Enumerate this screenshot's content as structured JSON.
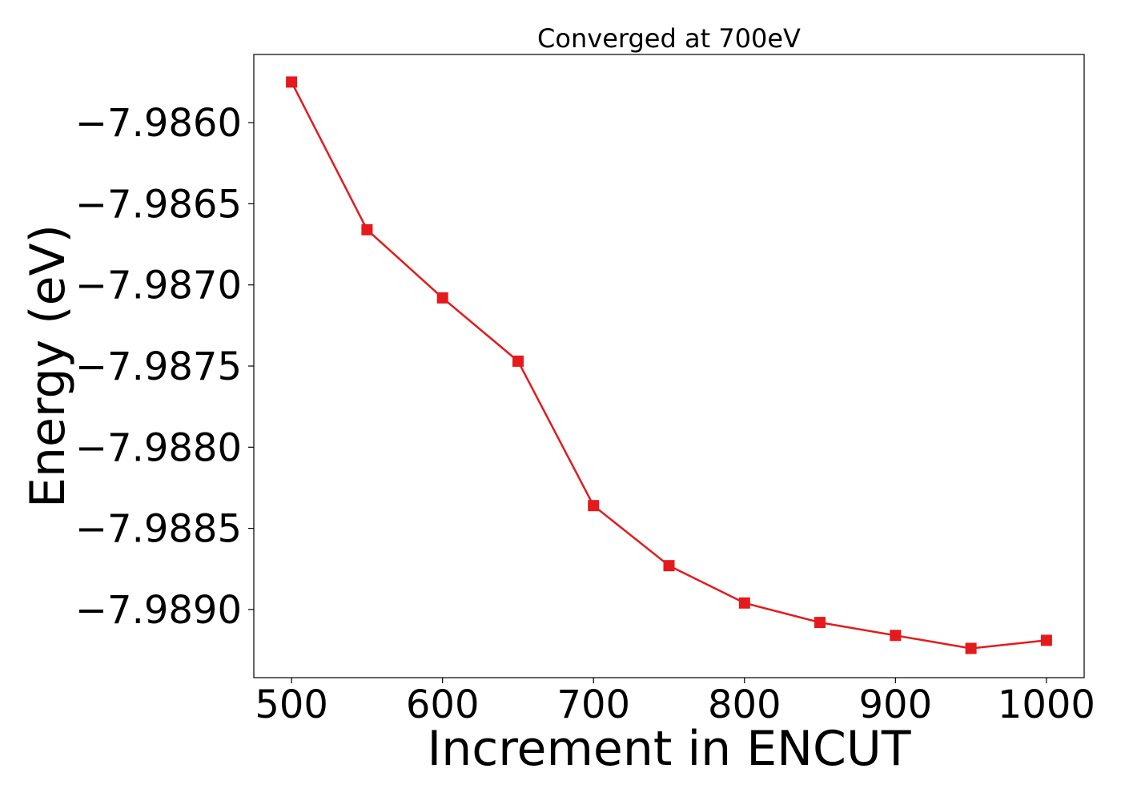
{
  "chart_data": {
    "type": "line",
    "title": "Converged at 700eV",
    "xlabel": "Increment in ENCUT",
    "ylabel": "Energy (eV)",
    "xlim": [
      475,
      1025
    ],
    "ylim": [
      -7.98942,
      -7.98558
    ],
    "x_ticks": [
      500,
      600,
      700,
      800,
      900,
      1000
    ],
    "x_tick_labels": [
      "500",
      "600",
      "700",
      "800",
      "900",
      "1000"
    ],
    "y_ticks": [
      -7.986,
      -7.9865,
      -7.987,
      -7.9875,
      -7.988,
      -7.9885,
      -7.989
    ],
    "y_tick_labels": [
      "−7.9860",
      "−7.9865",
      "−7.9870",
      "−7.9875",
      "−7.9880",
      "−7.9885",
      "−7.9890"
    ],
    "grid": false,
    "series": [
      {
        "name": "Energy",
        "color": "#e41a1c",
        "marker": "square",
        "x": [
          500,
          550,
          600,
          650,
          700,
          750,
          800,
          850,
          900,
          950,
          1000
        ],
        "y": [
          -7.98575,
          -7.98666,
          -7.98708,
          -7.98747,
          -7.98836,
          -7.98873,
          -7.98896,
          -7.98908,
          -7.98916,
          -7.98924,
          -7.98919
        ]
      }
    ]
  }
}
